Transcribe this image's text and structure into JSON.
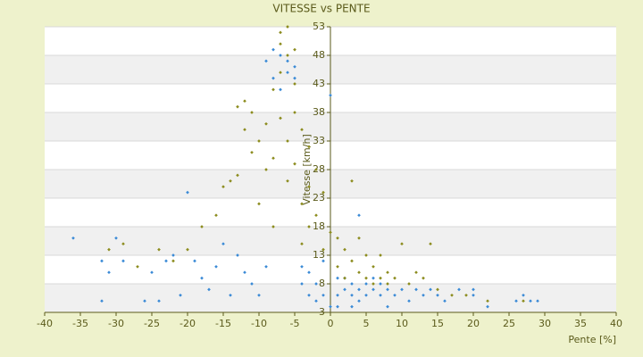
{
  "chart_data": {
    "type": "scatter",
    "title": "VITESSE vs PENTE",
    "x_label": "Pente [%]",
    "y_label": "Vitesse [km/h]",
    "xlim": [
      -40,
      40
    ],
    "xticks": [
      -40,
      -35,
      -30,
      -25,
      -20,
      -15,
      -10,
      -5,
      0,
      5,
      10,
      15,
      20,
      25,
      30,
      35,
      40
    ],
    "ylim": [
      3,
      53
    ],
    "yticks": [
      3,
      8,
      13,
      18,
      23,
      28,
      33,
      38,
      43,
      48,
      53
    ],
    "grid": true,
    "series": [
      {
        "color": "#3a8ad6",
        "x": [
          -36,
          -32,
          -32,
          -31,
          -30,
          -29,
          -26,
          -25,
          -24,
          -23,
          -22,
          -21,
          -20,
          -19,
          -18,
          -17,
          -16,
          -15,
          -14,
          -13,
          -12,
          -11,
          -10,
          -9,
          -9,
          -8,
          -8,
          -7,
          -7,
          -6,
          -6,
          -5,
          -5,
          -4,
          -4,
          -3,
          -3,
          -2,
          -2,
          -1,
          -1,
          0,
          0,
          1,
          1,
          2,
          2,
          3,
          3,
          4,
          4,
          5,
          5,
          6,
          6,
          7,
          7,
          8,
          9,
          10,
          11,
          12,
          13,
          14,
          15,
          16,
          18,
          20,
          20,
          22,
          26,
          27,
          28,
          29,
          4,
          3,
          8,
          1
        ],
        "values": [
          16,
          12,
          5,
          10,
          16,
          12,
          5,
          10,
          5,
          12,
          13,
          6,
          24,
          12,
          9,
          7,
          11,
          15,
          6,
          13,
          10,
          8,
          6,
          11,
          47,
          49,
          44,
          48,
          42,
          47,
          45,
          46,
          44,
          8,
          11,
          6,
          10,
          5,
          8,
          12,
          6,
          4,
          41,
          9,
          6,
          7,
          9,
          6,
          8,
          7,
          5,
          8,
          6,
          7,
          9,
          6,
          8,
          7,
          6,
          7,
          5,
          7,
          6,
          7,
          6,
          5,
          7,
          7,
          6,
          4,
          5,
          6,
          5,
          5,
          20,
          4,
          4,
          4
        ]
      },
      {
        "color": "#8c8c1e",
        "x": [
          -31,
          -29,
          -27,
          -24,
          -22,
          -20,
          -18,
          -16,
          -15,
          -14,
          -13,
          -13,
          -12,
          -12,
          -11,
          -11,
          -10,
          -10,
          -9,
          -9,
          -8,
          -8,
          -8,
          -7,
          -7,
          -7,
          -7,
          -6,
          -6,
          -6,
          -6,
          -5,
          -5,
          -5,
          -5,
          -4,
          -4,
          -4,
          -3,
          -3,
          -3,
          -2,
          -2,
          -1,
          -1,
          0,
          1,
          1,
          2,
          2,
          3,
          3,
          4,
          4,
          5,
          5,
          6,
          6,
          7,
          7,
          8,
          8,
          9,
          10,
          11,
          12,
          13,
          14,
          15,
          17,
          19,
          22,
          27
        ],
        "values": [
          14,
          15,
          11,
          14,
          12,
          14,
          18,
          20,
          25,
          26,
          27,
          39,
          40,
          35,
          38,
          31,
          33,
          22,
          28,
          36,
          42,
          30,
          18,
          50,
          52,
          45,
          37,
          53,
          48,
          33,
          26,
          49,
          43,
          38,
          29,
          35,
          22,
          15,
          32,
          25,
          18,
          28,
          20,
          24,
          14,
          17,
          16,
          11,
          14,
          9,
          26,
          12,
          16,
          10,
          13,
          9,
          11,
          8,
          9,
          13,
          8,
          10,
          9,
          15,
          8,
          10,
          9,
          15,
          7,
          6,
          6,
          5,
          5
        ]
      }
    ]
  }
}
